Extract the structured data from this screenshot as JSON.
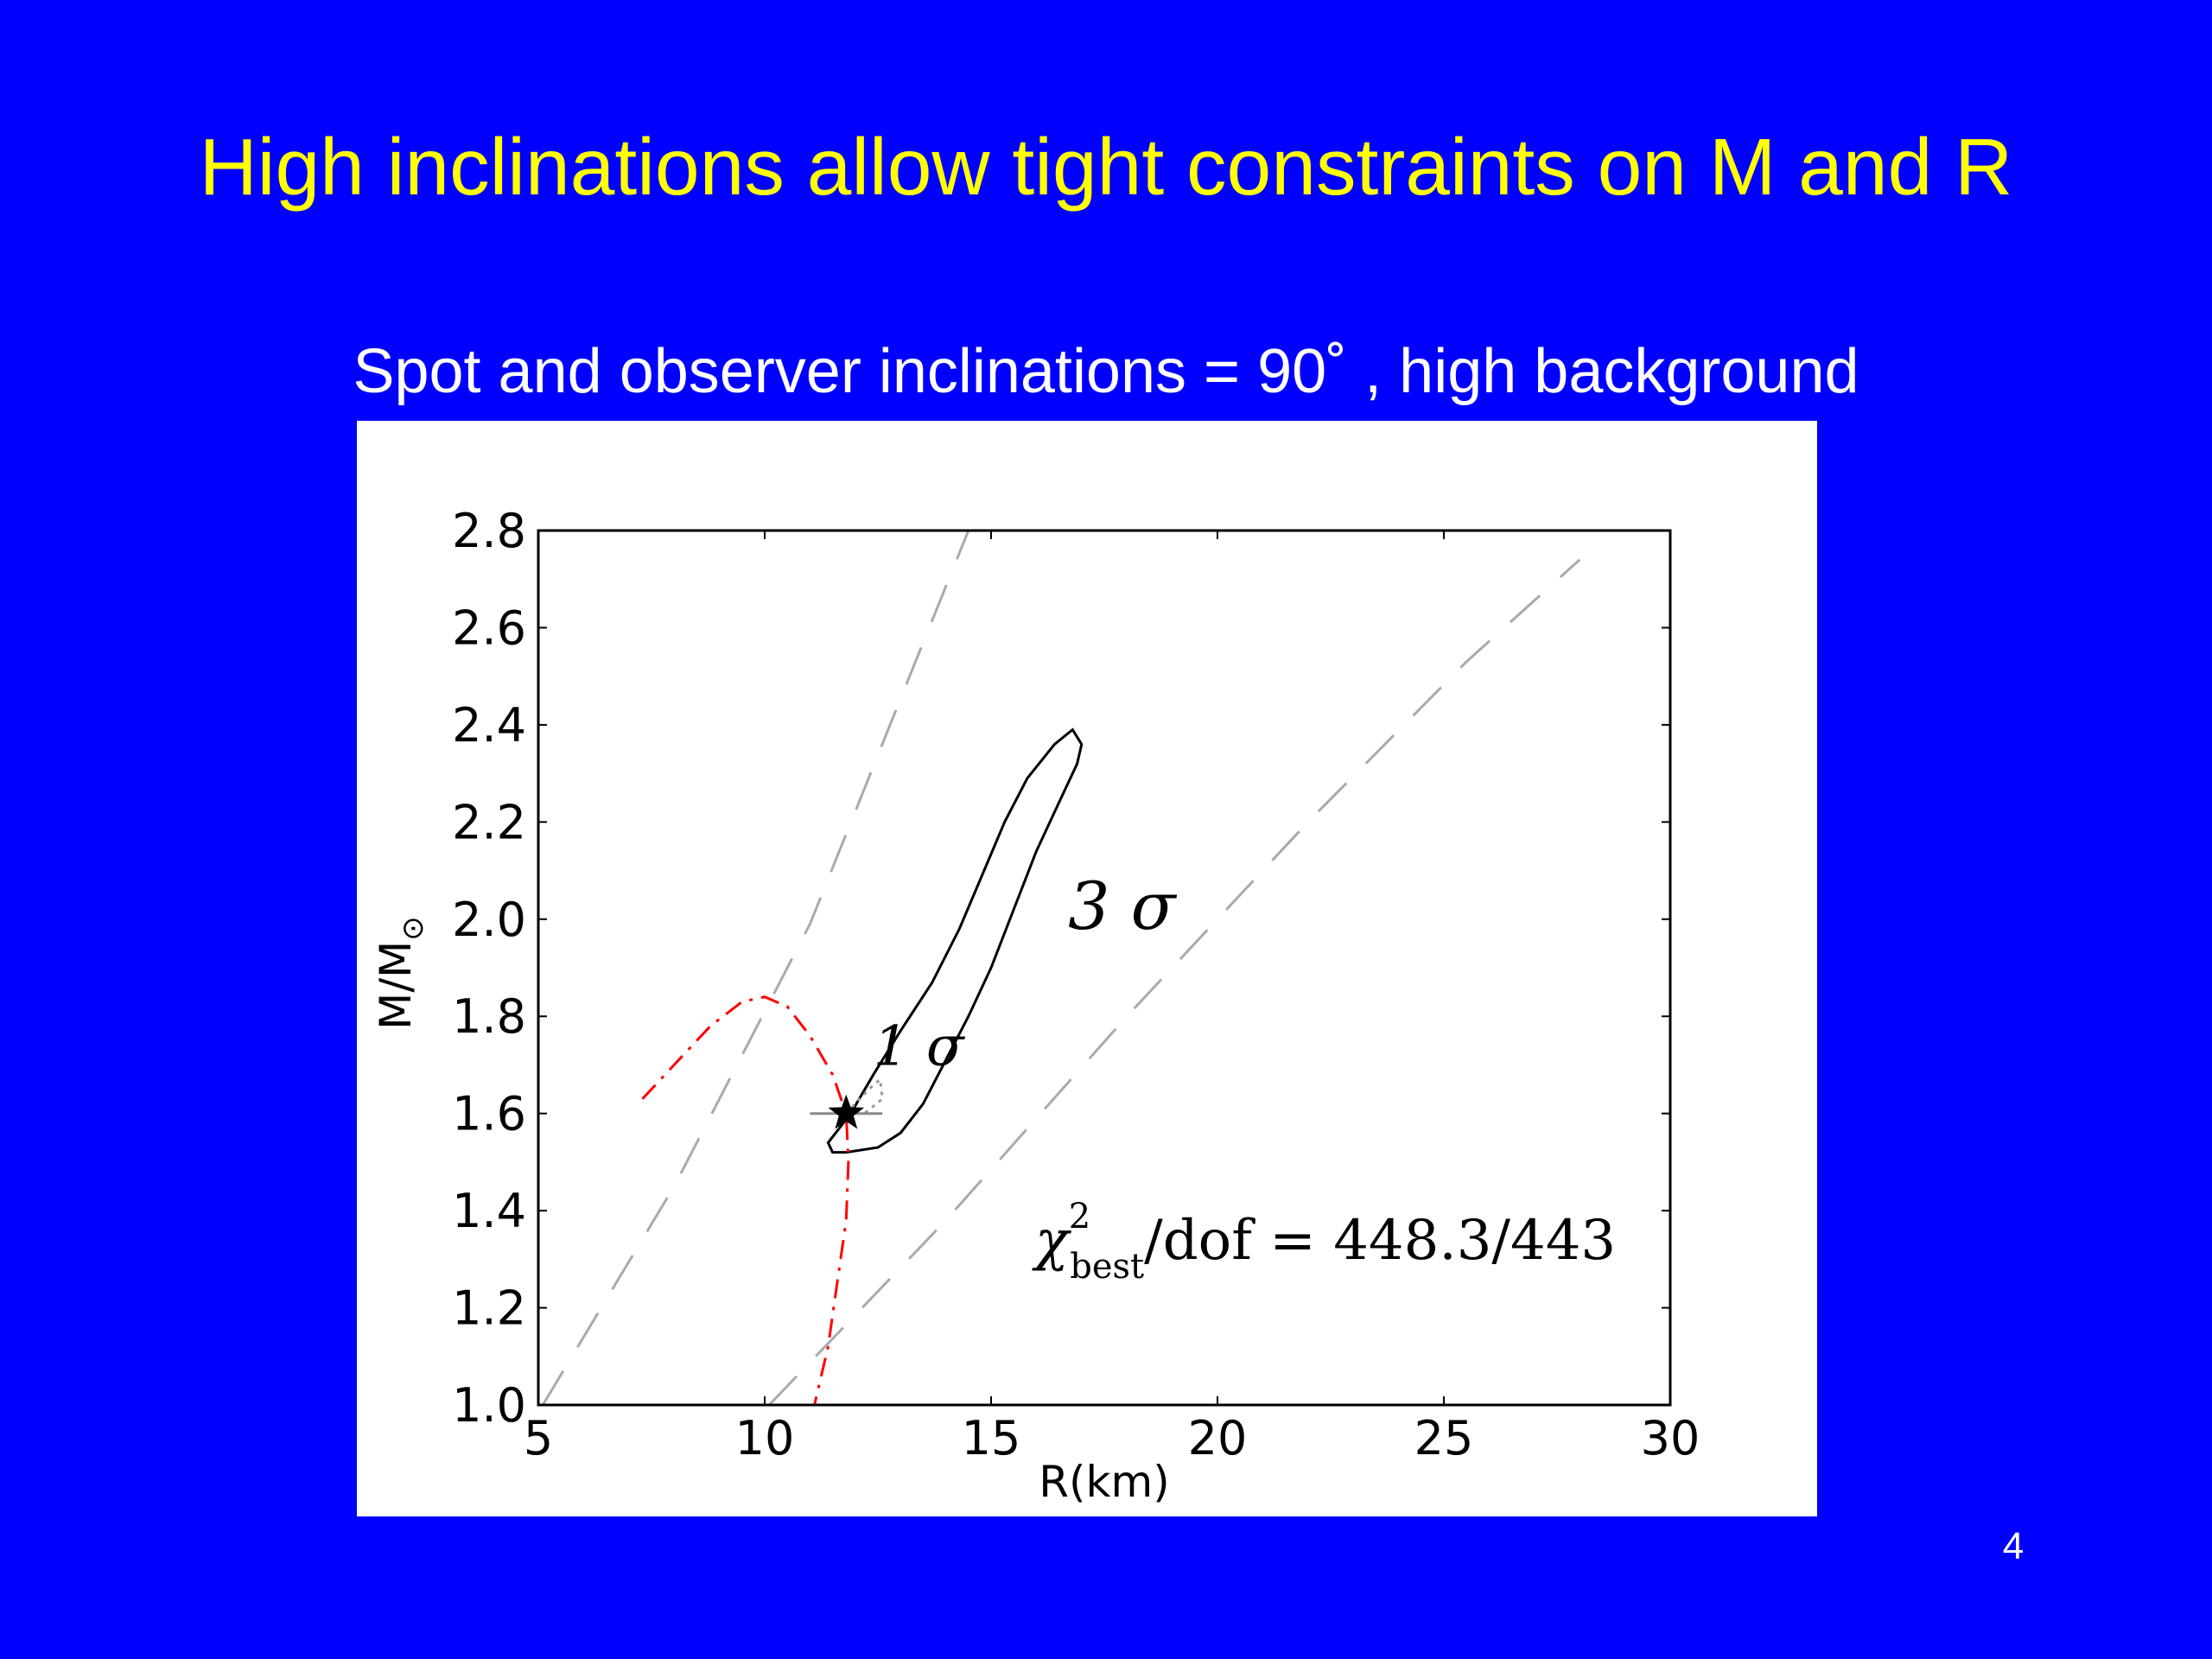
{
  "slide": {
    "title": "High inclinations allow tight constraints on M and R",
    "subtitle": "Spot and observer inclinations = 90˚ , high background",
    "page_number": "4"
  },
  "chart_data": {
    "type": "line",
    "xlabel": "R(km)",
    "ylabel": "M/M",
    "ylabel_subscript": "⊙",
    "xlim": [
      5,
      30
    ],
    "ylim": [
      1.0,
      2.8
    ],
    "xticks": [
      5,
      10,
      15,
      20,
      25,
      30
    ],
    "yticks": [
      1.0,
      1.2,
      1.4,
      1.6,
      1.8,
      2.0,
      2.2,
      2.4,
      2.6,
      2.8
    ],
    "xtick_labels": [
      "5",
      "10",
      "15",
      "20",
      "25",
      "30"
    ],
    "ytick_labels": [
      "1.0",
      "1.2",
      "1.4",
      "1.6",
      "1.8",
      "2.0",
      "2.2",
      "2.4",
      "2.6",
      "2.8"
    ],
    "grid": false,
    "best_fit": {
      "x": 11.8,
      "y": 1.6,
      "marker": "star"
    },
    "series": [
      {
        "style": "solid",
        "color": "#000000",
        "points": [
          [
            11.8,
            1.52
          ],
          [
            12.5,
            1.53
          ],
          [
            13.0,
            1.56
          ],
          [
            13.5,
            1.62
          ],
          [
            14.0,
            1.71
          ],
          [
            14.5,
            1.8
          ],
          [
            15.0,
            1.9
          ],
          [
            15.5,
            2.02
          ],
          [
            16.0,
            2.14
          ],
          [
            16.5,
            2.24
          ],
          [
            16.9,
            2.32
          ],
          [
            17.0,
            2.36
          ],
          [
            16.8,
            2.39
          ],
          [
            16.4,
            2.36
          ],
          [
            15.8,
            2.29
          ],
          [
            15.3,
            2.2
          ],
          [
            14.8,
            2.09
          ],
          [
            14.3,
            1.98
          ],
          [
            13.7,
            1.87
          ],
          [
            13.0,
            1.77
          ],
          [
            12.4,
            1.68
          ],
          [
            11.9,
            1.6
          ],
          [
            11.4,
            1.54
          ],
          [
            11.5,
            1.52
          ],
          [
            11.8,
            1.52
          ]
        ]
      },
      {
        "style": "dotted",
        "color": "#999999",
        "points": [
          [
            11.8,
            1.6
          ],
          [
            12.0,
            1.62
          ],
          [
            12.3,
            1.65
          ],
          [
            12.55,
            1.67
          ],
          [
            12.6,
            1.63
          ],
          [
            12.2,
            1.6
          ],
          [
            11.8,
            1.6
          ]
        ]
      },
      {
        "style": "dashdot",
        "color": "#ff0000",
        "points": [
          [
            7.3,
            1.63
          ],
          [
            8.0,
            1.7
          ],
          [
            8.8,
            1.78
          ],
          [
            9.5,
            1.83
          ],
          [
            10.0,
            1.84
          ],
          [
            10.5,
            1.82
          ],
          [
            11.0,
            1.76
          ],
          [
            11.5,
            1.68
          ],
          [
            11.8,
            1.6
          ],
          [
            11.85,
            1.5
          ],
          [
            11.8,
            1.38
          ],
          [
            11.6,
            1.25
          ],
          [
            11.4,
            1.12
          ],
          [
            11.1,
            1.0
          ]
        ]
      },
      {
        "style": "dashed",
        "color": "#aaaaaa",
        "points": [
          [
            5.1,
            1.0
          ],
          [
            8.0,
            1.45
          ],
          [
            11.0,
            1.99
          ],
          [
            13.2,
            2.5
          ],
          [
            14.5,
            2.8
          ]
        ]
      },
      {
        "style": "dashed",
        "color": "#aaaaaa",
        "points": [
          [
            10.1,
            1.0
          ],
          [
            14.0,
            1.38
          ],
          [
            18.0,
            1.8
          ],
          [
            22.0,
            2.2
          ],
          [
            25.5,
            2.53
          ],
          [
            28.0,
            2.74
          ]
        ]
      },
      {
        "style": "solid",
        "color": "#888888",
        "points": [
          [
            11.0,
            1.6
          ],
          [
            12.6,
            1.6
          ]
        ]
      }
    ],
    "annotations": [
      {
        "label": "3σ",
        "text": "3 σ",
        "x": 16.7,
        "y": 1.98
      },
      {
        "label": "1σ",
        "text": "1 σ",
        "x": 12.4,
        "y": 1.7
      },
      {
        "label": "chi2",
        "text": "χ²best/dof = 448.3/443"
      }
    ],
    "chi2": {
      "symbol": "χ",
      "superscript": "2",
      "subscript": "best",
      "rest": "/dof = 448.3/443"
    }
  }
}
